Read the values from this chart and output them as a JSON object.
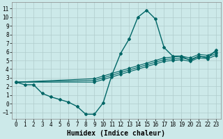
{
  "title": "",
  "xlabel": "Humidex (Indice chaleur)",
  "bg_color": "#cce9e9",
  "grid_color": "#b0cccc",
  "line_color": "#006666",
  "xlim": [
    -0.5,
    23.5
  ],
  "ylim": [
    -1.7,
    11.7
  ],
  "xticks": [
    0,
    1,
    2,
    3,
    4,
    5,
    6,
    7,
    8,
    9,
    10,
    11,
    12,
    13,
    14,
    15,
    16,
    17,
    18,
    19,
    20,
    21,
    22,
    23
  ],
  "yticks": [
    -1,
    0,
    1,
    2,
    3,
    4,
    5,
    6,
    7,
    8,
    9,
    10,
    11
  ],
  "line1_x": [
    0,
    1,
    2,
    3,
    4,
    5,
    6,
    7,
    8,
    9,
    10,
    11,
    12,
    13,
    14,
    15,
    16,
    17,
    18,
    19,
    20,
    21,
    22,
    23
  ],
  "line1_y": [
    2.5,
    2.2,
    2.2,
    1.2,
    0.8,
    0.5,
    0.2,
    -0.3,
    -1.2,
    -1.2,
    0.1,
    3.3,
    5.8,
    7.5,
    10.0,
    10.8,
    9.8,
    6.5,
    5.5,
    5.5,
    5.0,
    5.5,
    5.3,
    6.2
  ],
  "line2_x": [
    0,
    9,
    10,
    11,
    12,
    13,
    14,
    15,
    16,
    17,
    18,
    19,
    20,
    21,
    22,
    23
  ],
  "line2_y": [
    2.5,
    2.7,
    3.0,
    3.3,
    3.6,
    3.9,
    4.2,
    4.5,
    4.8,
    5.1,
    5.2,
    5.3,
    5.1,
    5.5,
    5.4,
    5.8
  ],
  "line3_x": [
    0,
    9,
    10,
    11,
    12,
    13,
    14,
    15,
    16,
    17,
    18,
    19,
    20,
    21,
    22,
    23
  ],
  "line3_y": [
    2.5,
    2.9,
    3.2,
    3.5,
    3.8,
    4.1,
    4.4,
    4.7,
    5.0,
    5.3,
    5.4,
    5.5,
    5.3,
    5.7,
    5.6,
    6.0
  ],
  "line4_x": [
    0,
    9,
    10,
    11,
    12,
    13,
    14,
    15,
    16,
    17,
    18,
    19,
    20,
    21,
    22,
    23
  ],
  "line4_y": [
    2.5,
    2.5,
    2.8,
    3.1,
    3.4,
    3.7,
    4.0,
    4.3,
    4.6,
    4.9,
    5.0,
    5.1,
    4.9,
    5.3,
    5.2,
    5.6
  ],
  "tick_fontsize": 5.5,
  "label_fontsize": 7.0
}
